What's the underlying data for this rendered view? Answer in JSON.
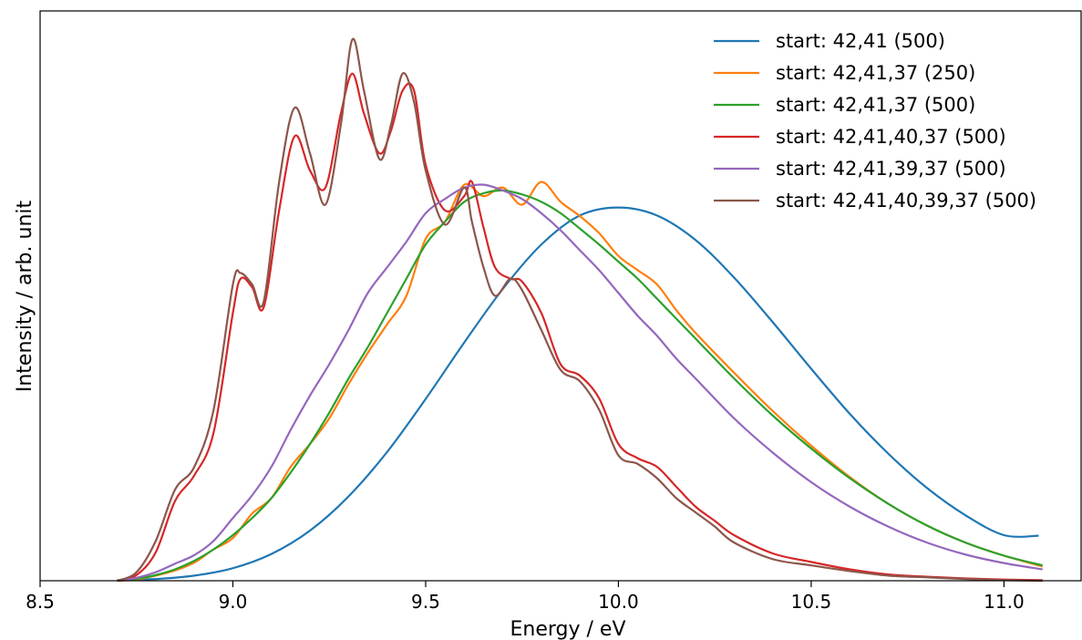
{
  "chart_data": {
    "type": "line",
    "xlabel": "Energy / eV",
    "ylabel": "Intensity / arb. unit",
    "xlim": [
      8.5,
      11.2
    ],
    "ylim": [
      0,
      1.0
    ],
    "x_ticks": [
      "8.5",
      "9.0",
      "9.5",
      "10.0",
      "10.5",
      "11.0"
    ],
    "y_ticks_shown": false,
    "grid": false,
    "legend_position": "top-right",
    "series": [
      {
        "name": "start: 42,41 (500)",
        "color": "#1f77b4",
        "x": [
          8.7,
          8.8,
          8.9,
          9.0,
          9.1,
          9.2,
          9.3,
          9.4,
          9.5,
          9.6,
          9.7,
          9.8,
          9.9,
          10.0,
          10.1,
          10.2,
          10.3,
          10.4,
          10.5,
          10.6,
          10.7,
          10.8,
          10.9,
          11.0,
          11.09
        ],
        "y": [
          0.001,
          0.003,
          0.009,
          0.022,
          0.047,
          0.088,
          0.148,
          0.226,
          0.319,
          0.418,
          0.512,
          0.59,
          0.641,
          0.655,
          0.641,
          0.598,
          0.532,
          0.454,
          0.372,
          0.293,
          0.223,
          0.163,
          0.115,
          0.08,
          0.079
        ]
      },
      {
        "name": "start: 42,41,37 (250)",
        "color": "#ff7f0e",
        "x": [
          8.7,
          8.75,
          8.8,
          8.85,
          8.9,
          8.95,
          9.0,
          9.05,
          9.1,
          9.15,
          9.2,
          9.25,
          9.3,
          9.35,
          9.4,
          9.45,
          9.5,
          9.55,
          9.6,
          9.65,
          9.7,
          9.75,
          9.8,
          9.85,
          9.9,
          9.95,
          10.0,
          10.05,
          10.1,
          10.15,
          10.2,
          10.3,
          10.4,
          10.5,
          10.6,
          10.7,
          10.8,
          10.9,
          11.0,
          11.1
        ],
        "y": [
          0.0,
          0.002,
          0.009,
          0.018,
          0.032,
          0.055,
          0.075,
          0.118,
          0.145,
          0.2,
          0.24,
          0.285,
          0.345,
          0.4,
          0.45,
          0.5,
          0.6,
          0.63,
          0.695,
          0.675,
          0.69,
          0.66,
          0.7,
          0.665,
          0.64,
          0.61,
          0.57,
          0.545,
          0.52,
          0.475,
          0.435,
          0.365,
          0.298,
          0.237,
          0.182,
          0.135,
          0.097,
          0.067,
          0.044,
          0.025
        ]
      },
      {
        "name": "start: 42,41,37 (500)",
        "color": "#2ca02c",
        "x": [
          8.7,
          8.75,
          8.8,
          8.85,
          8.9,
          8.95,
          9.0,
          9.05,
          9.1,
          9.15,
          9.2,
          9.25,
          9.3,
          9.35,
          9.4,
          9.45,
          9.5,
          9.55,
          9.6,
          9.65,
          9.7,
          9.75,
          9.8,
          9.85,
          9.9,
          9.95,
          10.0,
          10.05,
          10.1,
          10.15,
          10.2,
          10.3,
          10.4,
          10.5,
          10.6,
          10.7,
          10.8,
          10.9,
          11.0,
          11.1
        ],
        "y": [
          0.0,
          0.003,
          0.01,
          0.02,
          0.035,
          0.055,
          0.08,
          0.11,
          0.145,
          0.19,
          0.24,
          0.295,
          0.355,
          0.41,
          0.47,
          0.53,
          0.59,
          0.63,
          0.665,
          0.68,
          0.685,
          0.678,
          0.665,
          0.645,
          0.618,
          0.59,
          0.56,
          0.53,
          0.495,
          0.46,
          0.425,
          0.355,
          0.29,
          0.232,
          0.18,
          0.135,
          0.097,
          0.067,
          0.044,
          0.027
        ]
      },
      {
        "name": "start: 42,41,40,37 (500)",
        "color": "#d62728",
        "x": [
          8.7,
          8.75,
          8.8,
          8.85,
          8.9,
          8.95,
          9.0,
          9.02,
          9.05,
          9.08,
          9.12,
          9.16,
          9.2,
          9.24,
          9.28,
          9.31,
          9.34,
          9.38,
          9.41,
          9.44,
          9.47,
          9.5,
          9.55,
          9.6,
          9.62,
          9.65,
          9.68,
          9.72,
          9.75,
          9.8,
          9.85,
          9.9,
          9.95,
          10.0,
          10.05,
          10.1,
          10.15,
          10.2,
          10.25,
          10.3,
          10.4,
          10.5,
          10.6,
          10.7,
          10.8,
          10.9,
          11.0,
          11.1
        ],
        "y": [
          0.0,
          0.01,
          0.05,
          0.14,
          0.185,
          0.26,
          0.47,
          0.53,
          0.515,
          0.48,
          0.65,
          0.78,
          0.72,
          0.69,
          0.82,
          0.89,
          0.82,
          0.75,
          0.79,
          0.86,
          0.86,
          0.73,
          0.65,
          0.675,
          0.7,
          0.62,
          0.55,
          0.53,
          0.525,
          0.47,
          0.38,
          0.36,
          0.32,
          0.24,
          0.215,
          0.2,
          0.165,
          0.13,
          0.105,
          0.08,
          0.048,
          0.033,
          0.02,
          0.011,
          0.007,
          0.004,
          0.002,
          0.001
        ]
      },
      {
        "name": "start: 42,41,39,37 (500)",
        "color": "#9467bd",
        "x": [
          8.7,
          8.75,
          8.8,
          8.85,
          8.9,
          8.95,
          9.0,
          9.05,
          9.1,
          9.15,
          9.2,
          9.25,
          9.3,
          9.35,
          9.4,
          9.45,
          9.5,
          9.55,
          9.6,
          9.65,
          9.7,
          9.75,
          9.8,
          9.85,
          9.9,
          9.95,
          10.0,
          10.05,
          10.1,
          10.15,
          10.2,
          10.3,
          10.4,
          10.5,
          10.6,
          10.7,
          10.8,
          10.9,
          11.0,
          11.1
        ],
        "y": [
          0.0,
          0.005,
          0.015,
          0.03,
          0.045,
          0.07,
          0.11,
          0.15,
          0.2,
          0.265,
          0.325,
          0.38,
          0.44,
          0.505,
          0.55,
          0.595,
          0.645,
          0.67,
          0.69,
          0.695,
          0.685,
          0.67,
          0.645,
          0.615,
          0.58,
          0.545,
          0.505,
          0.465,
          0.43,
          0.39,
          0.355,
          0.285,
          0.225,
          0.173,
          0.13,
          0.095,
          0.067,
          0.046,
          0.031,
          0.02
        ]
      },
      {
        "name": "start: 42,41,40,39,37 (500)",
        "color": "#8c564b",
        "x": [
          8.7,
          8.75,
          8.8,
          8.85,
          8.9,
          8.95,
          9.0,
          9.02,
          9.05,
          9.08,
          9.12,
          9.16,
          9.2,
          9.24,
          9.28,
          9.31,
          9.34,
          9.38,
          9.41,
          9.44,
          9.47,
          9.5,
          9.55,
          9.6,
          9.62,
          9.65,
          9.68,
          9.72,
          9.75,
          9.8,
          9.85,
          9.9,
          9.95,
          10.0,
          10.05,
          10.1,
          10.15,
          10.2,
          10.25,
          10.3,
          10.4,
          10.5,
          10.6,
          10.7,
          10.8,
          10.9,
          11.0,
          11.1
        ],
        "y": [
          0.0,
          0.015,
          0.07,
          0.16,
          0.2,
          0.3,
          0.52,
          0.54,
          0.52,
          0.49,
          0.7,
          0.83,
          0.75,
          0.66,
          0.8,
          0.95,
          0.86,
          0.74,
          0.8,
          0.89,
          0.84,
          0.72,
          0.625,
          0.69,
          0.63,
          0.55,
          0.5,
          0.53,
          0.51,
          0.44,
          0.37,
          0.35,
          0.3,
          0.22,
          0.205,
          0.18,
          0.145,
          0.12,
          0.095,
          0.067,
          0.038,
          0.027,
          0.017,
          0.009,
          0.006,
          0.003,
          0.001,
          0.0
        ]
      }
    ]
  }
}
